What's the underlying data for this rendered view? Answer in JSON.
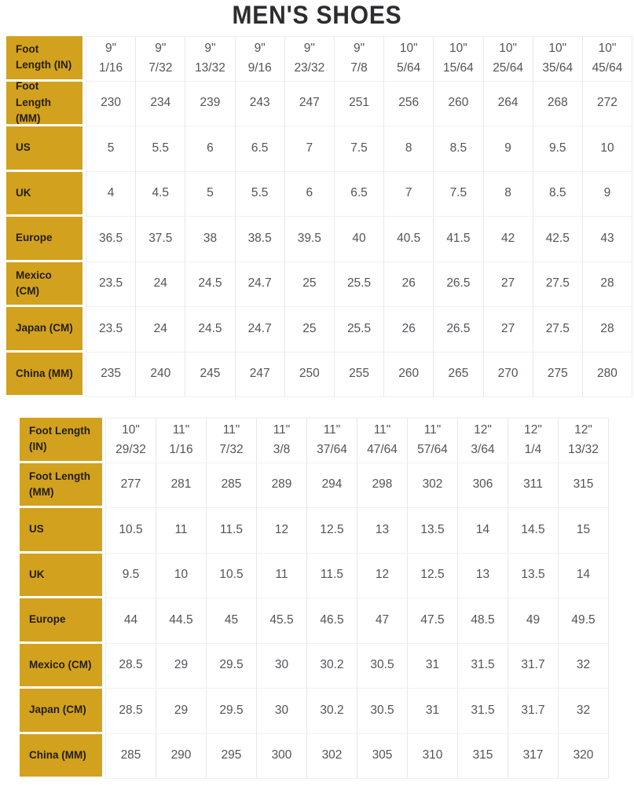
{
  "page": {
    "title": "MEN'S SHOES"
  },
  "colors": {
    "label_background": "#d2a11e",
    "label_text": "#231e12",
    "value_text": "#515458",
    "cell_border": "#e7e8e9",
    "title_text": "#2b2d30",
    "page_background": "#ffffff"
  },
  "tables": [
    {
      "name": "mens-shoes-sizes-small",
      "rows": [
        {
          "label": "Foot Length (IN)",
          "values": [
            "9\"\n1/16",
            "9\"\n7/32",
            "9\"\n13/32",
            "9\"\n9/16",
            "9\"\n23/32",
            "9\"\n7/8",
            "10\"\n5/64",
            "10\"\n15/64",
            "10\"\n25/64",
            "10\"\n35/64",
            "10\"\n45/64"
          ]
        },
        {
          "label": "Foot Length (MM)",
          "values": [
            "230",
            "234",
            "239",
            "243",
            "247",
            "251",
            "256",
            "260",
            "264",
            "268",
            "272"
          ]
        },
        {
          "label": "US",
          "values": [
            "5",
            "5.5",
            "6",
            "6.5",
            "7",
            "7.5",
            "8",
            "8.5",
            "9",
            "9.5",
            "10"
          ]
        },
        {
          "label": "UK",
          "values": [
            "4",
            "4.5",
            "5",
            "5.5",
            "6",
            "6.5",
            "7",
            "7.5",
            "8",
            "8.5",
            "9"
          ]
        },
        {
          "label": "Europe",
          "values": [
            "36.5",
            "37.5",
            "38",
            "38.5",
            "39.5",
            "40",
            "40.5",
            "41.5",
            "42",
            "42.5",
            "43"
          ]
        },
        {
          "label": "Mexico (CM)",
          "values": [
            "23.5",
            "24",
            "24.5",
            "24.7",
            "25",
            "25.5",
            "26",
            "26.5",
            "27",
            "27.5",
            "28"
          ]
        },
        {
          "label": "Japan (CM)",
          "values": [
            "23.5",
            "24",
            "24.5",
            "24.7",
            "25",
            "25.5",
            "26",
            "26.5",
            "27",
            "27.5",
            "28"
          ]
        },
        {
          "label": "China (MM)",
          "values": [
            "235",
            "240",
            "245",
            "247",
            "250",
            "255",
            "260",
            "265",
            "270",
            "275",
            "280"
          ]
        }
      ]
    },
    {
      "name": "mens-shoes-sizes-large",
      "rows": [
        {
          "label": "Foot Length (IN)",
          "values": [
            "10\"\n29/32",
            "11\"\n1/16",
            "11\"\n7/32",
            "11\"\n3/8",
            "11\"\n37/64",
            "11\"\n47/64",
            "11\"\n57/64",
            "12\"\n3/64",
            "12\"\n1/4",
            "12\"\n13/32"
          ]
        },
        {
          "label": "Foot Length (MM)",
          "values": [
            "277",
            "281",
            "285",
            "289",
            "294",
            "298",
            "302",
            "306",
            "311",
            "315"
          ]
        },
        {
          "label": "US",
          "values": [
            "10.5",
            "11",
            "11.5",
            "12",
            "12.5",
            "13",
            "13.5",
            "14",
            "14.5",
            "15"
          ]
        },
        {
          "label": "UK",
          "values": [
            "9.5",
            "10",
            "10.5",
            "11",
            "11.5",
            "12",
            "12.5",
            "13",
            "13.5",
            "14"
          ]
        },
        {
          "label": "Europe",
          "values": [
            "44",
            "44.5",
            "45",
            "45.5",
            "46.5",
            "47",
            "47.5",
            "48.5",
            "49",
            "49.5"
          ]
        },
        {
          "label": "Mexico (CM)",
          "values": [
            "28.5",
            "29",
            "29.5",
            "30",
            "30.2",
            "30.5",
            "31",
            "31.5",
            "31.7",
            "32"
          ]
        },
        {
          "label": "Japan (CM)",
          "values": [
            "28.5",
            "29",
            "29.5",
            "30",
            "30.2",
            "30.5",
            "31",
            "31.5",
            "31.7",
            "32"
          ]
        },
        {
          "label": "China (MM)",
          "values": [
            "285",
            "290",
            "295",
            "300",
            "302",
            "305",
            "310",
            "315",
            "317",
            "320"
          ]
        }
      ]
    }
  ]
}
